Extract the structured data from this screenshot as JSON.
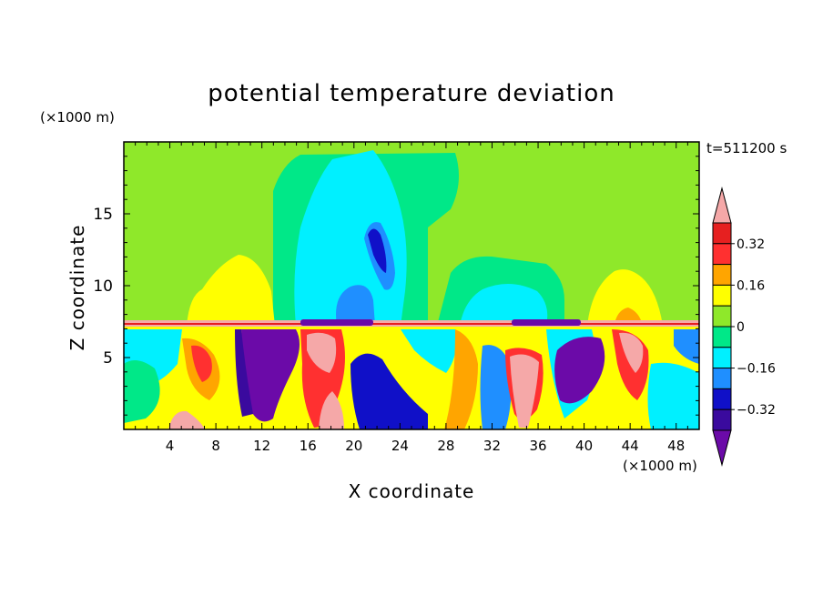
{
  "chart_data": {
    "type": "heatmap",
    "title": "potential temperature deviation",
    "xlabel": "X coordinate",
    "ylabel": "Z coordinate",
    "x_unit": "(×1000 m)",
    "y_unit": "(×1000 m)",
    "time_label": "t=511200 s",
    "xlim": [
      0,
      50
    ],
    "ylim": [
      0,
      20
    ],
    "x_ticks": [
      "4",
      "8",
      "12",
      "16",
      "20",
      "24",
      "28",
      "32",
      "36",
      "40",
      "44",
      "48"
    ],
    "y_ticks": [
      "5",
      "10",
      "15"
    ],
    "colorbar": {
      "labels": [
        "0.32",
        "0.16",
        "0",
        "−0.16",
        "−0.32"
      ],
      "levels": [
        -0.4,
        -0.32,
        -0.24,
        -0.16,
        -0.08,
        0,
        0.08,
        0.16,
        0.24,
        0.32,
        0.4
      ],
      "colors": [
        "#6b0aa8",
        "#3a0a9e",
        "#1010c8",
        "#1f8fff",
        "#00f0ff",
        "#00e888",
        "#8fe82a",
        "#ffff00",
        "#ffa500",
        "#ff3030",
        "#e62020",
        "#f5a8a8"
      ]
    },
    "field_regions": [
      {
        "level": 0,
        "x": [
          0,
          50
        ],
        "z": [
          8,
          20
        ]
      },
      {
        "level": -0.08,
        "x": [
          13.2,
          28
        ],
        "z": [
          7.4,
          20
        ]
      },
      {
        "level": -0.16,
        "x": [
          17,
          23
        ],
        "z": [
          7.4,
          19.5
        ]
      },
      {
        "level": -0.24,
        "x": [
          20.5,
          23
        ],
        "z": [
          9.5,
          14.5
        ]
      },
      {
        "level": 0.16,
        "x": [
          5.5,
          12
        ],
        "z": [
          7.4,
          12
        ]
      },
      {
        "level": 0.16,
        "x": [
          40.5,
          46.5
        ],
        "z": [
          7.4,
          11.3
        ]
      },
      {
        "level": 0.4,
        "x": [
          0,
          50
        ],
        "z": [
          7.2,
          7.5
        ]
      },
      {
        "level": -0.32,
        "x": [
          11,
          15
        ],
        "z": [
          0.8,
          7
        ]
      },
      {
        "level": 0.4,
        "x": [
          16,
          19
        ],
        "z": [
          1,
          6.8
        ]
      },
      {
        "level": 0.4,
        "x": [
          33.5,
          36
        ],
        "z": [
          0.5,
          5.5
        ]
      },
      {
        "level": -0.32,
        "x": [
          38,
          42
        ],
        "z": [
          1.5,
          6.5
        ]
      }
    ]
  }
}
